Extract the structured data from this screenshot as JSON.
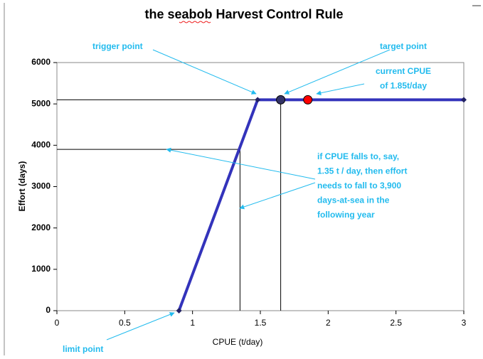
{
  "chart_data": {
    "type": "line",
    "title": "the seabob Harvest Control Rule",
    "xlabel": "CPUE (t/day)",
    "ylabel": "Effort (days)",
    "xlim": [
      0,
      3
    ],
    "ylim": [
      0,
      6000
    ],
    "xticks": [
      0,
      0.5,
      1,
      1.5,
      2,
      2.5,
      3
    ],
    "yticks": [
      0,
      1000,
      2000,
      3000,
      4000,
      5000,
      6000
    ],
    "series": [
      {
        "color": "#3333bb",
        "x": [
          0.9,
          1.48,
          3
        ],
        "values": [
          0,
          5100,
          5100
        ]
      }
    ],
    "points": [
      {
        "x": 1.65,
        "y": 5100,
        "color": "#333366"
      },
      {
        "x": 1.85,
        "y": 5100,
        "color": "#ff0000"
      }
    ],
    "reference_lines": [
      {
        "x": 1.35,
        "y": 3900
      },
      {
        "x": 1.65,
        "y": 5100
      }
    ],
    "annotations": [
      {
        "lines": [
          "trigger point"
        ]
      },
      {
        "lines": [
          "target point"
        ]
      },
      {
        "lines": [
          "current CPUE",
          "of 1.85t/day"
        ]
      },
      {
        "lines": [
          "if CPUE falls to, say,",
          "1.35 t / day, then effort",
          "needs to fall to 3,900",
          "days-at-sea in the",
          "following year"
        ]
      },
      {
        "lines": [
          "limit point"
        ]
      }
    ]
  }
}
